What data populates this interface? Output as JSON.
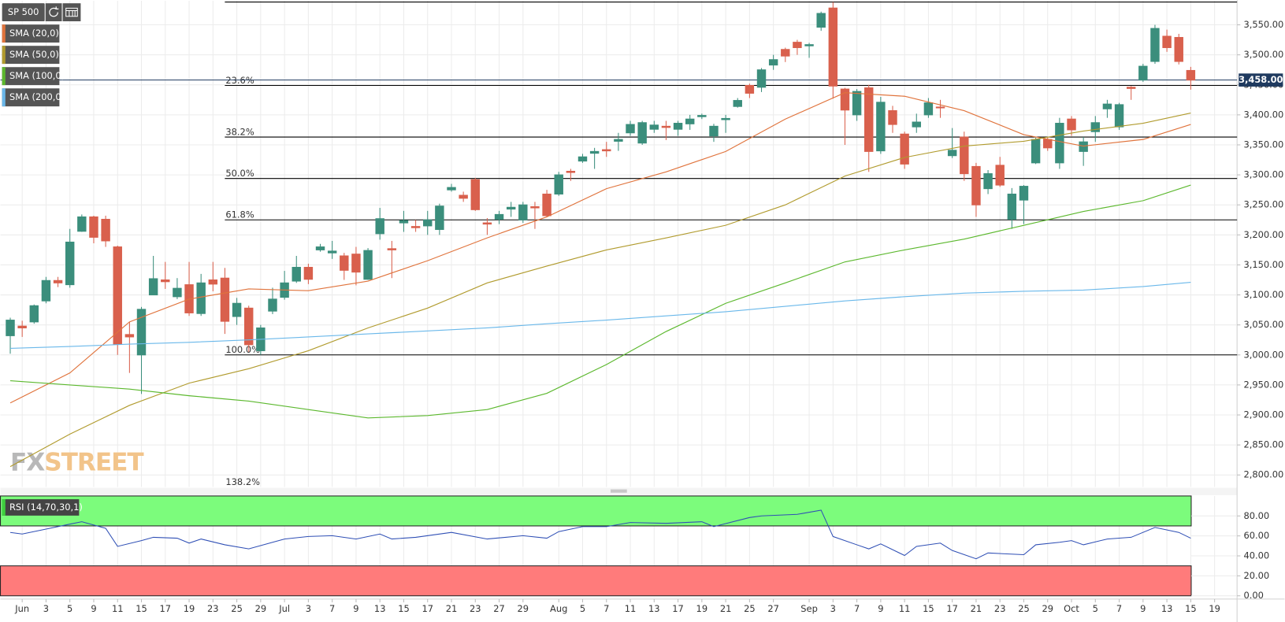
{
  "chart_data": [
    {
      "type": "candlestick",
      "title": "SP 500",
      "categories": [
        null,
        "Jun",
        null,
        "3",
        null,
        "5",
        null,
        "9",
        null,
        "11",
        null,
        "15",
        null,
        "17",
        null,
        "19",
        null,
        "23",
        null,
        "25",
        null,
        "29",
        null,
        "Jul",
        null,
        "3",
        null,
        "7",
        null,
        "9",
        null,
        "13",
        null,
        "15",
        null,
        "17",
        null,
        "21",
        null,
        "23",
        null,
        "27",
        null,
        "29",
        null,
        null,
        "Aug",
        null,
        "5",
        null,
        "7",
        null,
        "11",
        null,
        "13",
        null,
        "17",
        null,
        "19",
        null,
        "21",
        null,
        "25",
        null,
        "27",
        null,
        null,
        "Sep",
        null,
        "3",
        null,
        "7",
        null,
        "9",
        null,
        "11",
        null,
        "15",
        null,
        "17",
        null,
        "21",
        null,
        "23",
        null,
        "25",
        null,
        "29",
        null,
        "Oct",
        null,
        "5",
        null,
        "7",
        null,
        "9",
        null,
        "13",
        null,
        "15",
        null,
        "19",
        null
      ],
      "open": [
        3032,
        3048,
        3055,
        3090,
        3124,
        3117,
        3206,
        3230,
        3226,
        3180,
        3034,
        3000,
        3100,
        3125,
        3097,
        3117,
        3069,
        3125,
        3128,
        3064,
        3078,
        3007,
        3073,
        3096,
        3123,
        3146,
        3175,
        3170,
        3165,
        3168,
        3126,
        3202,
        3177,
        3220,
        3214,
        3215,
        3209,
        3275,
        3266,
        3292,
        3220,
        3226,
        3243,
        3225,
        3247,
        3268,
        3268,
        3306,
        3323,
        3336,
        3342,
        3356,
        3370,
        3353,
        3376,
        3381,
        3376,
        3385,
        3397,
        3365,
        3392,
        3414,
        3449,
        3446,
        3483,
        3509,
        3521,
        3515,
        3546,
        3578,
        3443,
        3400,
        3445,
        3340,
        3407,
        3368,
        3380,
        3400,
        3413,
        3332,
        3363,
        3314,
        3277,
        3316,
        3226,
        3258,
        3320,
        3359,
        3320,
        3393,
        3339,
        3372,
        3410,
        3380,
        3446,
        3458,
        3489,
        3531,
        3529,
        3474,
        null,
        null,
        null
      ],
      "high": [
        3062,
        3057,
        3084,
        3130,
        3130,
        3210,
        3234,
        3232,
        3232,
        3182,
        3055,
        3080,
        3165,
        3155,
        3128,
        3155,
        3135,
        3155,
        3145,
        3095,
        3082,
        3050,
        3112,
        3140,
        3165,
        3152,
        3185,
        3190,
        3170,
        3180,
        3178,
        3245,
        3190,
        3240,
        3225,
        3240,
        3252,
        3285,
        3272,
        3295,
        3228,
        3240,
        3255,
        3255,
        3255,
        3275,
        3305,
        3310,
        3335,
        3345,
        3355,
        3370,
        3390,
        3390,
        3390,
        3390,
        3390,
        3400,
        3402,
        3385,
        3400,
        3428,
        3452,
        3478,
        3500,
        3512,
        3525,
        3520,
        3572,
        3588,
        3445,
        3443,
        3450,
        3430,
        3415,
        3372,
        3402,
        3428,
        3425,
        3378,
        3372,
        3320,
        3308,
        3330,
        3278,
        3283,
        3362,
        3362,
        3395,
        3398,
        3363,
        3398,
        3425,
        3420,
        3448,
        3485,
        3550,
        3542,
        3535,
        3480,
        null,
        null,
        null
      ],
      "low": [
        3002,
        3030,
        3052,
        3086,
        3113,
        3112,
        3205,
        3186,
        3180,
        3000,
        2970,
        2935,
        3100,
        3110,
        3093,
        3065,
        3065,
        3106,
        3035,
        3050,
        3005,
        3000,
        3068,
        3092,
        3120,
        3118,
        3172,
        3160,
        3125,
        3116,
        3125,
        3192,
        3128,
        3205,
        3205,
        3200,
        3200,
        3272,
        3255,
        3240,
        3200,
        3218,
        3230,
        3220,
        3210,
        3230,
        3265,
        3290,
        3320,
        3310,
        3330,
        3340,
        3365,
        3350,
        3370,
        3358,
        3365,
        3375,
        3393,
        3355,
        3370,
        3412,
        3428,
        3438,
        3475,
        3488,
        3500,
        3495,
        3540,
        3427,
        3350,
        3390,
        3305,
        3335,
        3370,
        3310,
        3370,
        3395,
        3395,
        3328,
        3290,
        3230,
        3268,
        3280,
        3210,
        3218,
        3318,
        3340,
        3310,
        3365,
        3315,
        3355,
        3395,
        3375,
        3425,
        3455,
        3485,
        3505,
        3484,
        3442,
        null,
        null,
        null
      ],
      "close": [
        3058,
        3045,
        3082,
        3124,
        3120,
        3188,
        3230,
        3196,
        3190,
        3018,
        3030,
        3076,
        3127,
        3122,
        3111,
        3070,
        3120,
        3118,
        3056,
        3086,
        3017,
        3045,
        3093,
        3120,
        3146,
        3126,
        3180,
        3173,
        3141,
        3138,
        3174,
        3227,
        3175,
        3224,
        3212,
        3225,
        3248,
        3279,
        3261,
        3242,
        3218,
        3234,
        3246,
        3250,
        3245,
        3232,
        3300,
        3304,
        3330,
        3339,
        3340,
        3359,
        3384,
        3387,
        3383,
        3379,
        3386,
        3393,
        3399,
        3381,
        3394,
        3424,
        3436,
        3475,
        3492,
        3498,
        3512,
        3517,
        3569,
        3448,
        3408,
        3439,
        3339,
        3421,
        3384,
        3318,
        3388,
        3420,
        3412,
        3341,
        3302,
        3250,
        3302,
        3283,
        3268,
        3281,
        3359,
        3345,
        3386,
        3375,
        3355,
        3387,
        3418,
        3417,
        3444,
        3481,
        3544,
        3512,
        3489,
        3458,
        null,
        null,
        null
      ],
      "up_color": "#3b8e7c",
      "down_color": "#d9604d",
      "series": [
        {
          "name": "SMA (20,0)",
          "color": "#e0733c",
          "x": [
            0,
            5,
            10,
            15,
            20,
            25,
            30,
            35,
            40,
            45,
            50,
            55,
            60,
            65,
            70,
            75,
            80,
            85,
            90,
            95,
            99
          ],
          "values": [
            2920,
            2970,
            3055,
            3093,
            3110,
            3107,
            3123,
            3157,
            3195,
            3230,
            3277,
            3305,
            3339,
            3393,
            3437,
            3431,
            3407,
            3367,
            3348,
            3359,
            3384
          ]
        },
        {
          "name": "SMA (50,0)",
          "color": "#b19b2e",
          "x": [
            0,
            5,
            10,
            15,
            20,
            25,
            30,
            35,
            40,
            45,
            50,
            55,
            60,
            65,
            70,
            75,
            80,
            85,
            90,
            95,
            99
          ],
          "values": [
            2814,
            2868,
            2916,
            2953,
            2977,
            3007,
            3045,
            3078,
            3120,
            3148,
            3175,
            3195,
            3216,
            3250,
            3298,
            3329,
            3348,
            3356,
            3373,
            3386,
            3403
          ]
        },
        {
          "name": "SMA (100,0)",
          "color": "#5cb82e",
          "x": [
            0,
            5,
            10,
            15,
            20,
            25,
            30,
            35,
            40,
            45,
            50,
            55,
            60,
            65,
            70,
            75,
            80,
            85,
            90,
            95,
            99
          ],
          "values": [
            2957,
            2950,
            2943,
            2932,
            2923,
            2909,
            2895,
            2899,
            2909,
            2936,
            2984,
            3039,
            3086,
            3120,
            3155,
            3175,
            3193,
            3216,
            3239,
            3257,
            3283
          ]
        },
        {
          "name": "SMA (200,0)",
          "color": "#6ab8ea",
          "x": [
            0,
            5,
            10,
            15,
            20,
            25,
            30,
            35,
            40,
            45,
            50,
            55,
            60,
            65,
            70,
            75,
            80,
            85,
            90,
            95,
            99
          ],
          "values": [
            3011,
            3014,
            3018,
            3021,
            3025,
            3030,
            3035,
            3040,
            3045,
            3052,
            3058,
            3065,
            3072,
            3081,
            3090,
            3097,
            3103,
            3106,
            3108,
            3114,
            3121
          ]
        }
      ],
      "fib": {
        "levels": [
          3588,
          3449,
          3363,
          3294,
          3225,
          3000,
          2775
        ],
        "labels": [
          null,
          "23.6%",
          "38.2%",
          "50.0%",
          "61.8%",
          "100.0%",
          "138.2%"
        ]
      },
      "last_price": {
        "value": 3458,
        "label": "3,458.00"
      },
      "ylim": [
        2780,
        3590
      ],
      "yticks": [
        {
          "value": 2800,
          "label": "2,800.00"
        },
        {
          "value": 2850,
          "label": "2,850.00"
        },
        {
          "value": 2900,
          "label": "2,900.00"
        },
        {
          "value": 2950,
          "label": "2,950.00"
        },
        {
          "value": 3000,
          "label": "3,000.00"
        },
        {
          "value": 3050,
          "label": "3,050.00"
        },
        {
          "value": 3100,
          "label": "3,100.00"
        },
        {
          "value": 3150,
          "label": "3,150.00"
        },
        {
          "value": 3200,
          "label": "3,200.00"
        },
        {
          "value": 3250,
          "label": "3,250.00"
        },
        {
          "value": 3300,
          "label": "3,300.00"
        },
        {
          "value": 3350,
          "label": "3,350.00"
        },
        {
          "value": 3400,
          "label": "3,400.00"
        },
        {
          "value": 3450,
          "label": "3,450.00"
        },
        {
          "value": 3500,
          "label": "3,500.00"
        },
        {
          "value": 3550,
          "label": "3,550.00"
        }
      ],
      "grid": true,
      "watermark": [
        "FX",
        "STREET"
      ]
    },
    {
      "type": "line",
      "series": [
        {
          "name": "RSI (14,70,30,1)",
          "color": "#2f4fb5",
          "x": [
            0,
            1,
            3,
            5,
            6,
            8,
            9,
            11,
            12,
            14,
            15,
            16,
            18,
            20,
            22,
            23,
            25,
            27,
            29,
            31,
            32,
            34,
            37,
            40,
            43,
            45,
            46,
            48,
            50,
            52,
            55,
            58,
            59,
            62,
            63,
            66,
            68,
            69,
            71,
            72,
            73,
            75,
            76,
            78,
            79,
            81,
            82,
            85,
            86,
            88,
            89,
            90,
            92,
            94,
            96,
            98,
            99
          ],
          "values": [
            63.5,
            61.9,
            66.8,
            71.8,
            74.2,
            67.6,
            49.5,
            55.3,
            58.6,
            57.7,
            52.8,
            56.9,
            51.1,
            47.0,
            53.6,
            56.9,
            59.4,
            60.2,
            56.9,
            61.9,
            56.9,
            58.6,
            63.5,
            56.9,
            60.2,
            57.7,
            64.3,
            69.3,
            69.3,
            73.4,
            72.6,
            74.2,
            69.3,
            78.4,
            80.0,
            81.6,
            85.8,
            59.4,
            51.1,
            47.0,
            52.0,
            40.4,
            49.5,
            52.8,
            45.4,
            37.1,
            42.9,
            41.2,
            51.1,
            53.6,
            55.3,
            51.1,
            56.9,
            58.6,
            68.5,
            63.5,
            57.7
          ]
        }
      ],
      "bands": [
        {
          "from": 70,
          "to": 100,
          "color": "#7cfc7c"
        },
        {
          "from": 0,
          "to": 30,
          "color": "#ff7b7b"
        }
      ],
      "ylim": [
        0,
        100
      ],
      "yticks": [
        {
          "value": 0,
          "label": "0.00"
        },
        {
          "value": 20,
          "label": "20.00"
        },
        {
          "value": 40,
          "label": "40.00"
        },
        {
          "value": 60,
          "label": "60.00"
        },
        {
          "value": 80,
          "label": "80.00"
        }
      ],
      "grid": true
    }
  ]
}
